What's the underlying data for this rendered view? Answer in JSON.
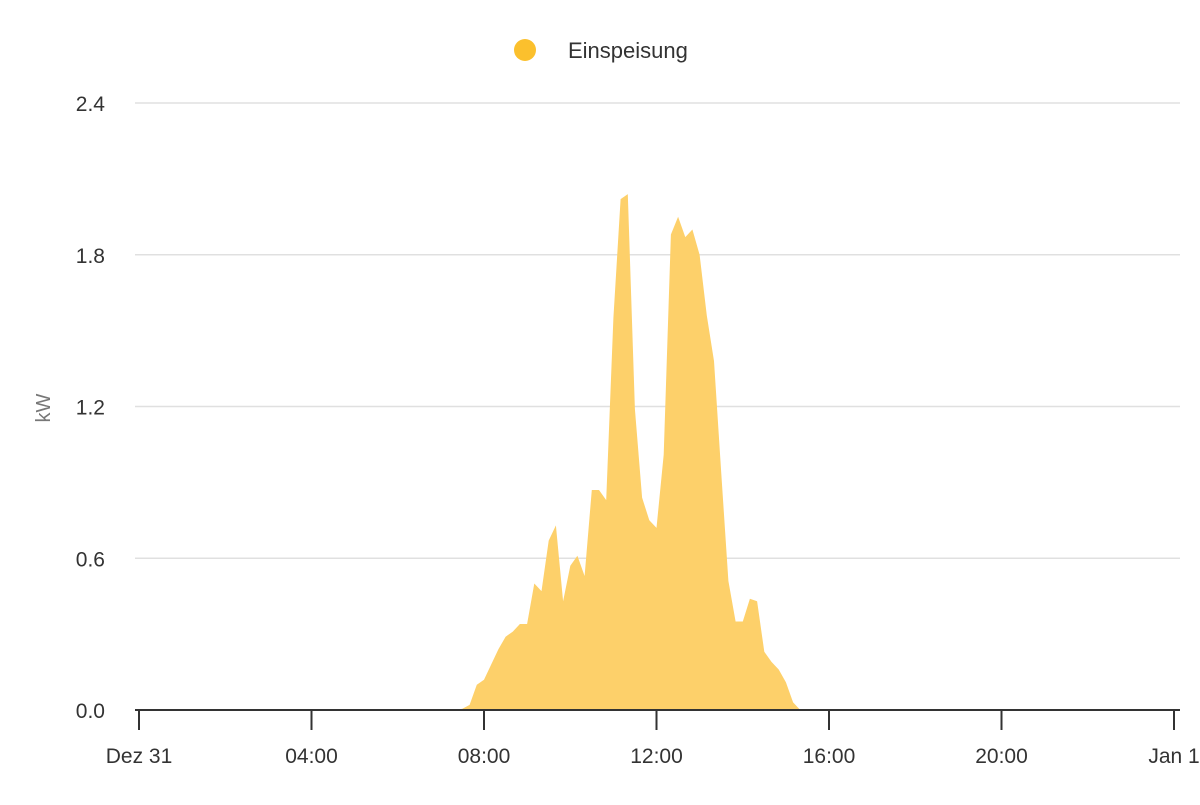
{
  "chart_data": {
    "type": "area",
    "title": "",
    "xlabel": "",
    "ylabel": "kW",
    "ylim": [
      0,
      2.4
    ],
    "xlim": [
      "Dez 31 00:00",
      "Jan 1 00:00"
    ],
    "grid": true,
    "legend_placement": "top",
    "y_ticks": [
      "0.0",
      "0.6",
      "1.2",
      "1.8",
      "2.4"
    ],
    "x_ticks": [
      "Dez 31",
      "04:00",
      "08:00",
      "12:00",
      "16:00",
      "20:00",
      "Jan 1"
    ],
    "series": [
      {
        "name": "Einspeisung",
        "color": "#fbc02d",
        "fill_color": "#fdd06a",
        "x": [
          "00:00",
          "07:20",
          "07:30",
          "07:40",
          "07:50",
          "08:00",
          "08:10",
          "08:20",
          "08:30",
          "08:40",
          "08:50",
          "09:00",
          "09:10",
          "09:20",
          "09:30",
          "09:40",
          "09:50",
          "10:00",
          "10:10",
          "10:20",
          "10:30",
          "10:40",
          "10:50",
          "11:00",
          "11:10",
          "11:20",
          "11:30",
          "11:40",
          "11:50",
          "12:00",
          "12:10",
          "12:20",
          "12:30",
          "12:40",
          "12:50",
          "13:00",
          "13:10",
          "13:20",
          "13:30",
          "13:40",
          "13:50",
          "14:00",
          "14:10",
          "14:20",
          "14:30",
          "14:40",
          "14:50",
          "15:00",
          "15:10",
          "15:20",
          "24:00"
        ],
        "values": [
          0,
          0,
          0.005,
          0.02,
          0.1,
          0.12,
          0.18,
          0.24,
          0.29,
          0.31,
          0.34,
          0.34,
          0.5,
          0.47,
          0.67,
          0.73,
          0.43,
          0.57,
          0.61,
          0.53,
          0.87,
          0.87,
          0.83,
          1.55,
          2.02,
          2.04,
          1.19,
          0.84,
          0.75,
          0.72,
          1.01,
          1.88,
          1.95,
          1.87,
          1.9,
          1.8,
          1.56,
          1.38,
          0.94,
          0.51,
          0.35,
          0.35,
          0.44,
          0.43,
          0.23,
          0.19,
          0.16,
          0.11,
          0.03,
          0,
          0
        ]
      }
    ]
  }
}
